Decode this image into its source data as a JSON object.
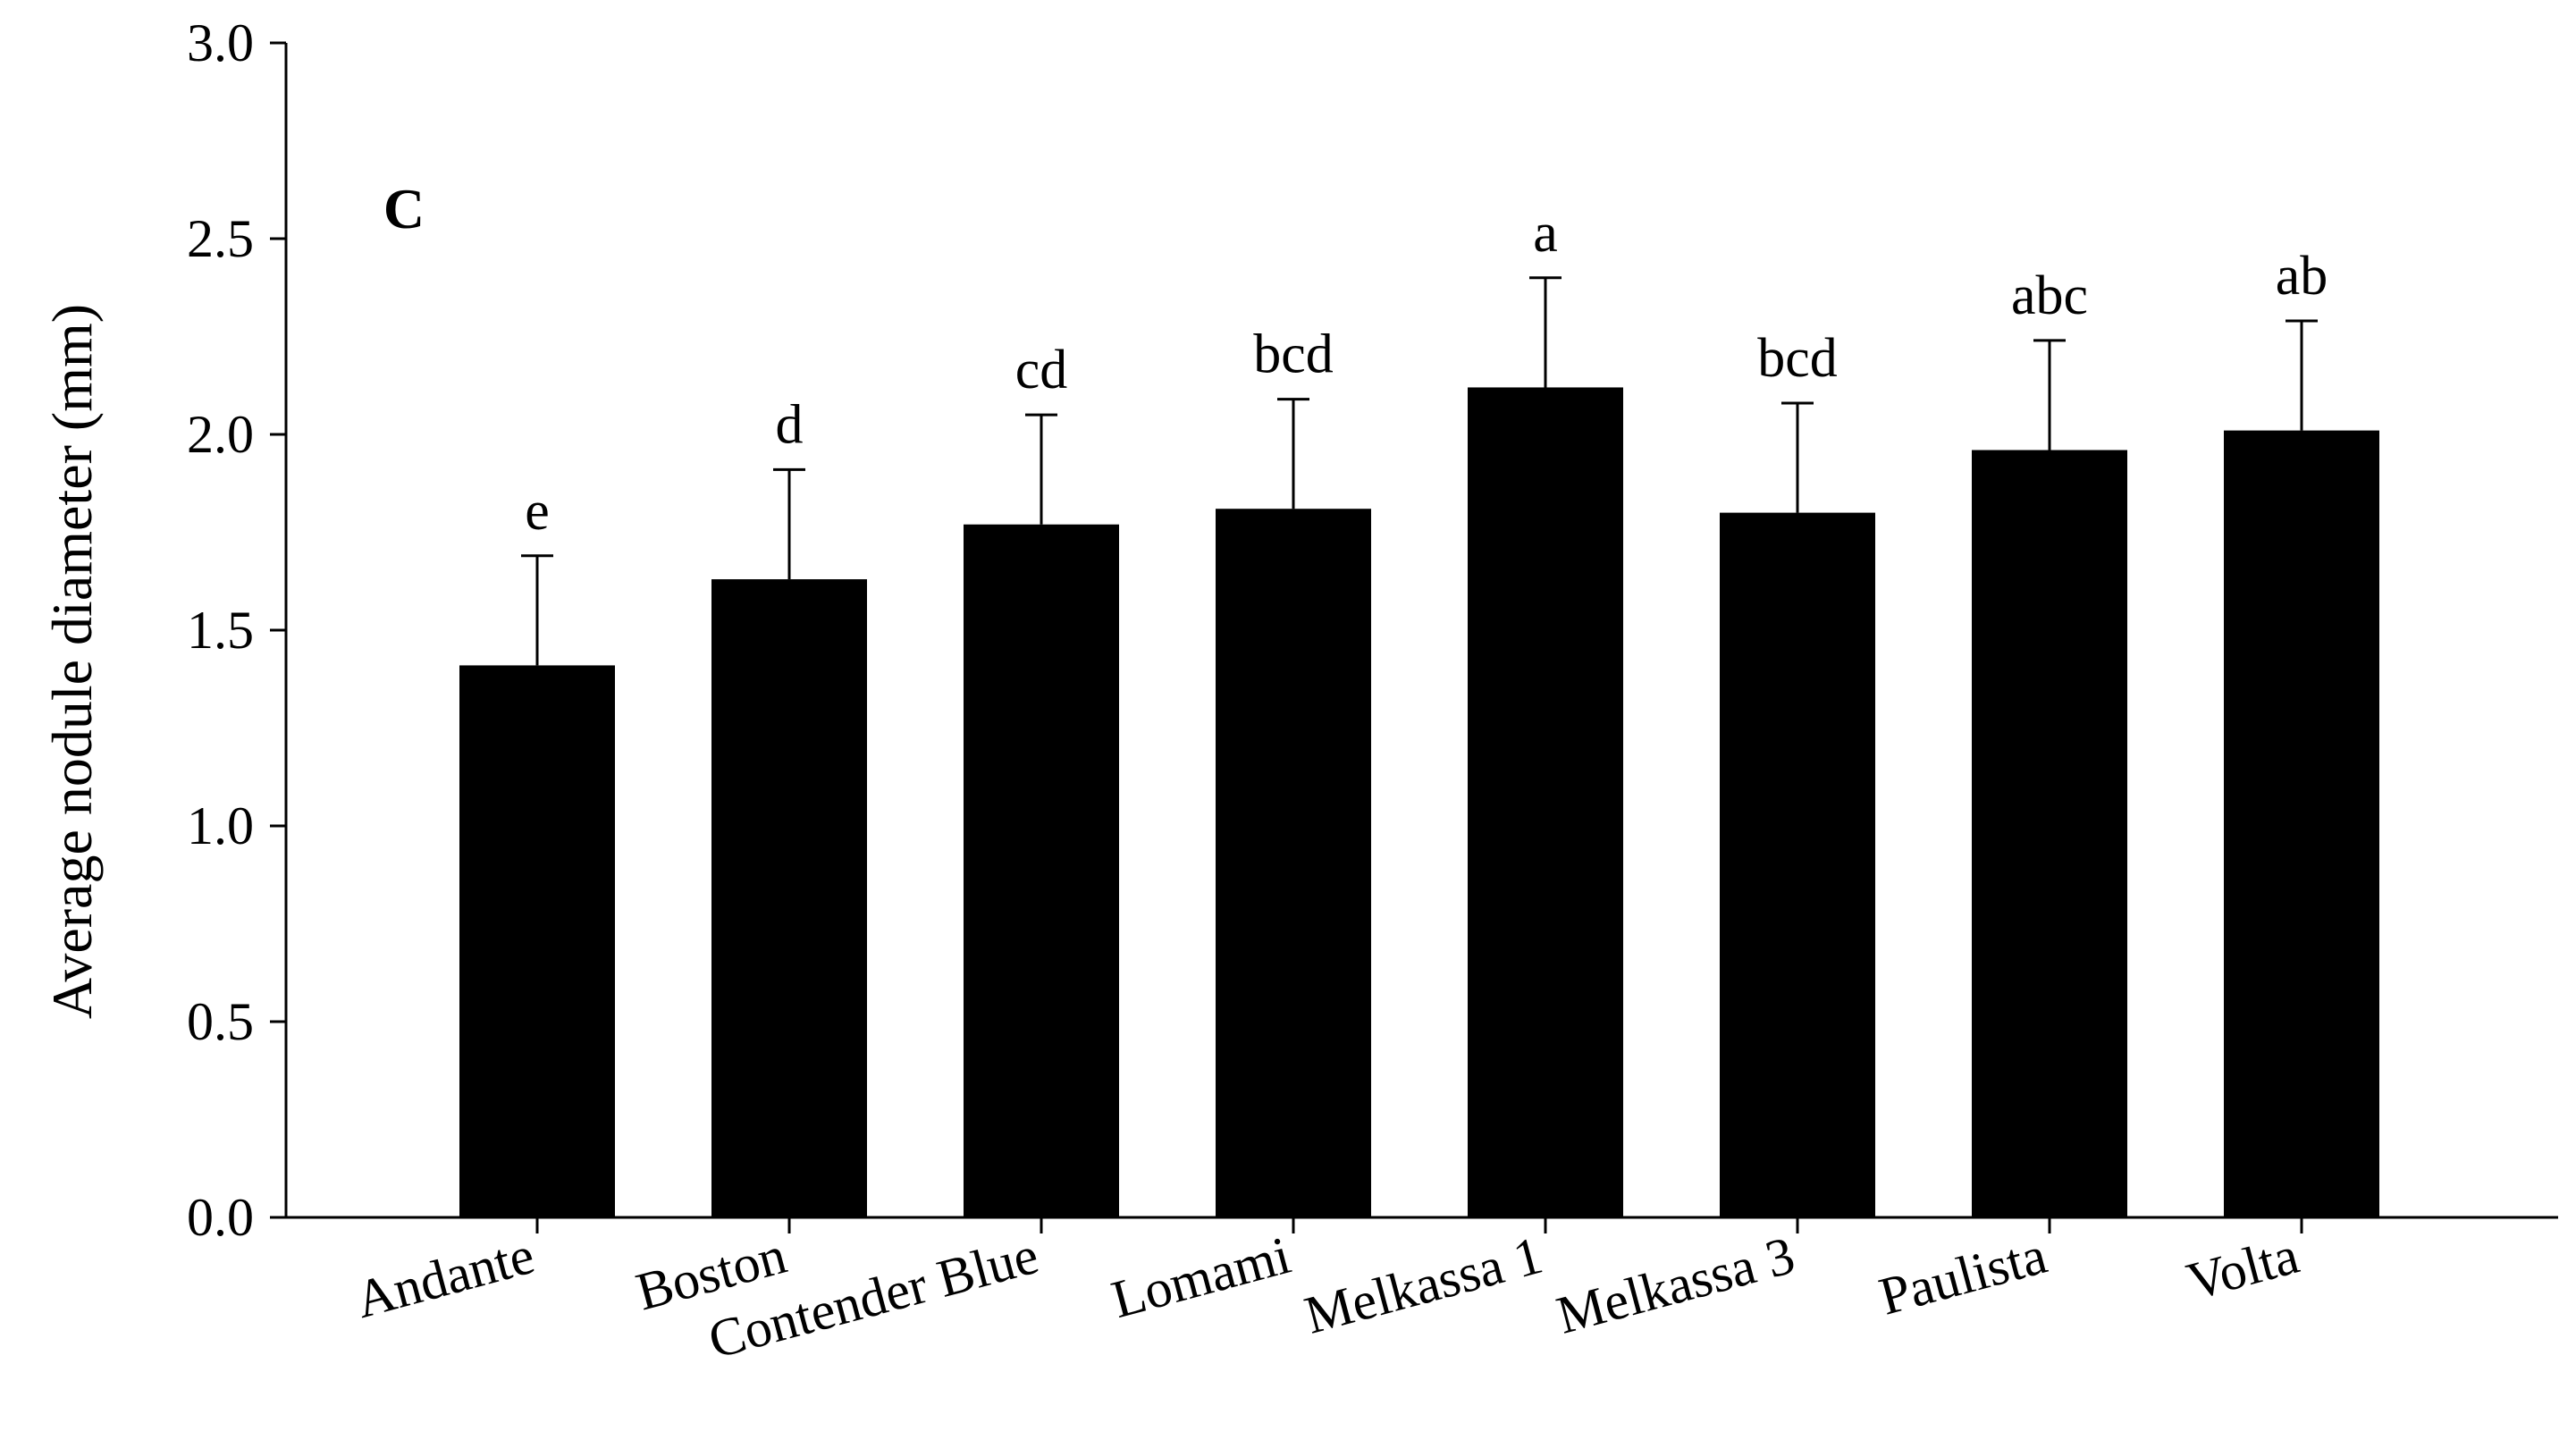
{
  "chart_data": {
    "type": "bar",
    "panel_label": "C",
    "ylabel": "Average nodule diameter (mm)",
    "xlabel": "",
    "ylim": [
      0,
      3.0
    ],
    "y_ticks": [
      "0.0",
      "0.5",
      "1.0",
      "1.5",
      "2.0",
      "2.5",
      "3.0"
    ],
    "y_tick_values": [
      0,
      0.5,
      1.0,
      1.5,
      2.0,
      2.5,
      3.0
    ],
    "categories": [
      "Andante",
      "Boston",
      "Contender Blue",
      "Lomami",
      "Melkassa 1",
      "Melkassa 3",
      "Paulista",
      "Volta"
    ],
    "values": [
      1.41,
      1.63,
      1.77,
      1.81,
      2.12,
      1.8,
      1.96,
      2.01
    ],
    "errors": [
      0.28,
      0.28,
      0.28,
      0.28,
      0.28,
      0.28,
      0.28,
      0.28
    ],
    "significance_letters": [
      "e",
      "d",
      "cd",
      "bcd",
      "a",
      "bcd",
      "abc",
      "ab"
    ],
    "bar_color": "#000000",
    "grid": false,
    "legend": "none"
  }
}
